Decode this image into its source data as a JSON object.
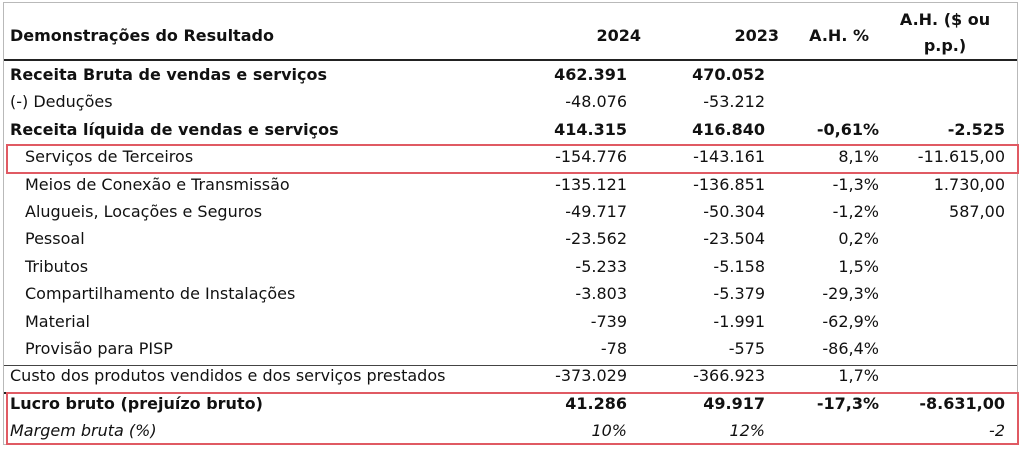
{
  "header": {
    "title": "Demonstrações do Resultado",
    "col_2024": "2024",
    "col_2023": "2023",
    "col_ah_pct": "A.H. %",
    "col_ah_abs_line1": "A.H. ($ ou",
    "col_ah_abs_line2": "p.p.)"
  },
  "rows": [
    {
      "label": "Receita Bruta de vendas e serviços",
      "v2024": "462.391",
      "v2023": "470.052",
      "ah_pct": "",
      "ah_abs": ""
    },
    {
      "label": "(-) Deduções",
      "v2024": "-48.076",
      "v2023": "-53.212",
      "ah_pct": "",
      "ah_abs": ""
    },
    {
      "label": "Receita líquida de vendas e serviços",
      "v2024": "414.315",
      "v2023": "416.840",
      "ah_pct": "-0,61%",
      "ah_abs": "-2.525"
    },
    {
      "label": "Serviços de Terceiros",
      "v2024": "-154.776",
      "v2023": "-143.161",
      "ah_pct": "8,1%",
      "ah_abs": "-11.615,00"
    },
    {
      "label": "Meios de Conexão e Transmissão",
      "v2024": "-135.121",
      "v2023": "-136.851",
      "ah_pct": "-1,3%",
      "ah_abs": "1.730,00"
    },
    {
      "label": "Alugueis, Locações e Seguros",
      "v2024": "-49.717",
      "v2023": "-50.304",
      "ah_pct": "-1,2%",
      "ah_abs": "587,00"
    },
    {
      "label": "Pessoal",
      "v2024": "-23.562",
      "v2023": "-23.504",
      "ah_pct": "0,2%",
      "ah_abs": ""
    },
    {
      "label": "Tributos",
      "v2024": "-5.233",
      "v2023": "-5.158",
      "ah_pct": "1,5%",
      "ah_abs": ""
    },
    {
      "label": "Compartilhamento de Instalações",
      "v2024": "-3.803",
      "v2023": "-5.379",
      "ah_pct": "-29,3%",
      "ah_abs": ""
    },
    {
      "label": "Material",
      "v2024": "-739",
      "v2023": "-1.991",
      "ah_pct": "-62,9%",
      "ah_abs": ""
    },
    {
      "label": "Provisão para PISP",
      "v2024": "-78",
      "v2023": "-575",
      "ah_pct": "-86,4%",
      "ah_abs": ""
    },
    {
      "label": "Custo dos produtos vendidos e dos serviços prestados",
      "v2024": "-373.029",
      "v2023": "-366.923",
      "ah_pct": "1,7%",
      "ah_abs": ""
    },
    {
      "label": "Lucro bruto (prejuízo bruto)",
      "v2024": "41.286",
      "v2023": "49.917",
      "ah_pct": "-17,3%",
      "ah_abs": "-8.631,00"
    },
    {
      "label": "Margem bruta (%)",
      "v2024": "10%",
      "v2023": "12%",
      "ah_pct": "",
      "ah_abs": "-2"
    }
  ],
  "colors": {
    "highlight_border": "#e05a63",
    "rule": "#222222"
  }
}
